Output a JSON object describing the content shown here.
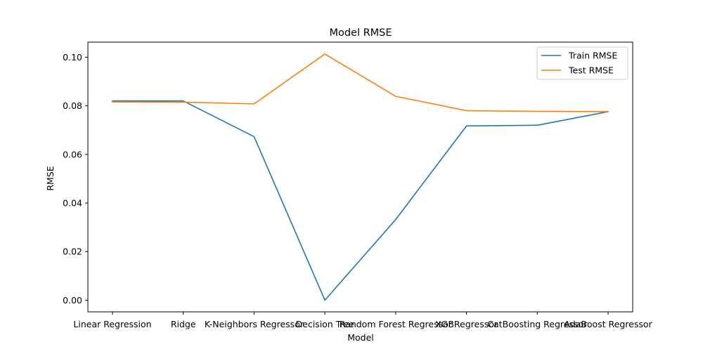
{
  "chart_data": {
    "type": "line",
    "title": "Model RMSE",
    "xlabel": "Model",
    "ylabel": "RMSE",
    "categories": [
      "Linear Regression",
      "Ridge",
      "K-Neighbors Regressor",
      "Decision Tree",
      "Random Forest Regressor",
      "XGBRegressor",
      "CatBoosting Regressor",
      "AdaBoost Regressor"
    ],
    "ylim": [
      -0.0048,
      0.1062
    ],
    "yticks": [
      0.0,
      0.02,
      0.04,
      0.06,
      0.08,
      0.1
    ],
    "ytick_labels": [
      "0.00",
      "0.02",
      "0.04",
      "0.06",
      "0.08",
      "0.10"
    ],
    "grid": false,
    "legend_position": "top-right",
    "series": [
      {
        "name": "Train RMSE",
        "color": "#1f77b4",
        "values": [
          0.082,
          0.082,
          0.0673,
          0.0,
          0.0332,
          0.0717,
          0.072,
          0.0776
        ]
      },
      {
        "name": "Test RMSE",
        "color": "#ff7f0e",
        "values": [
          0.0816,
          0.0815,
          0.0808,
          0.1013,
          0.0839,
          0.078,
          0.0777,
          0.0776
        ]
      }
    ]
  }
}
